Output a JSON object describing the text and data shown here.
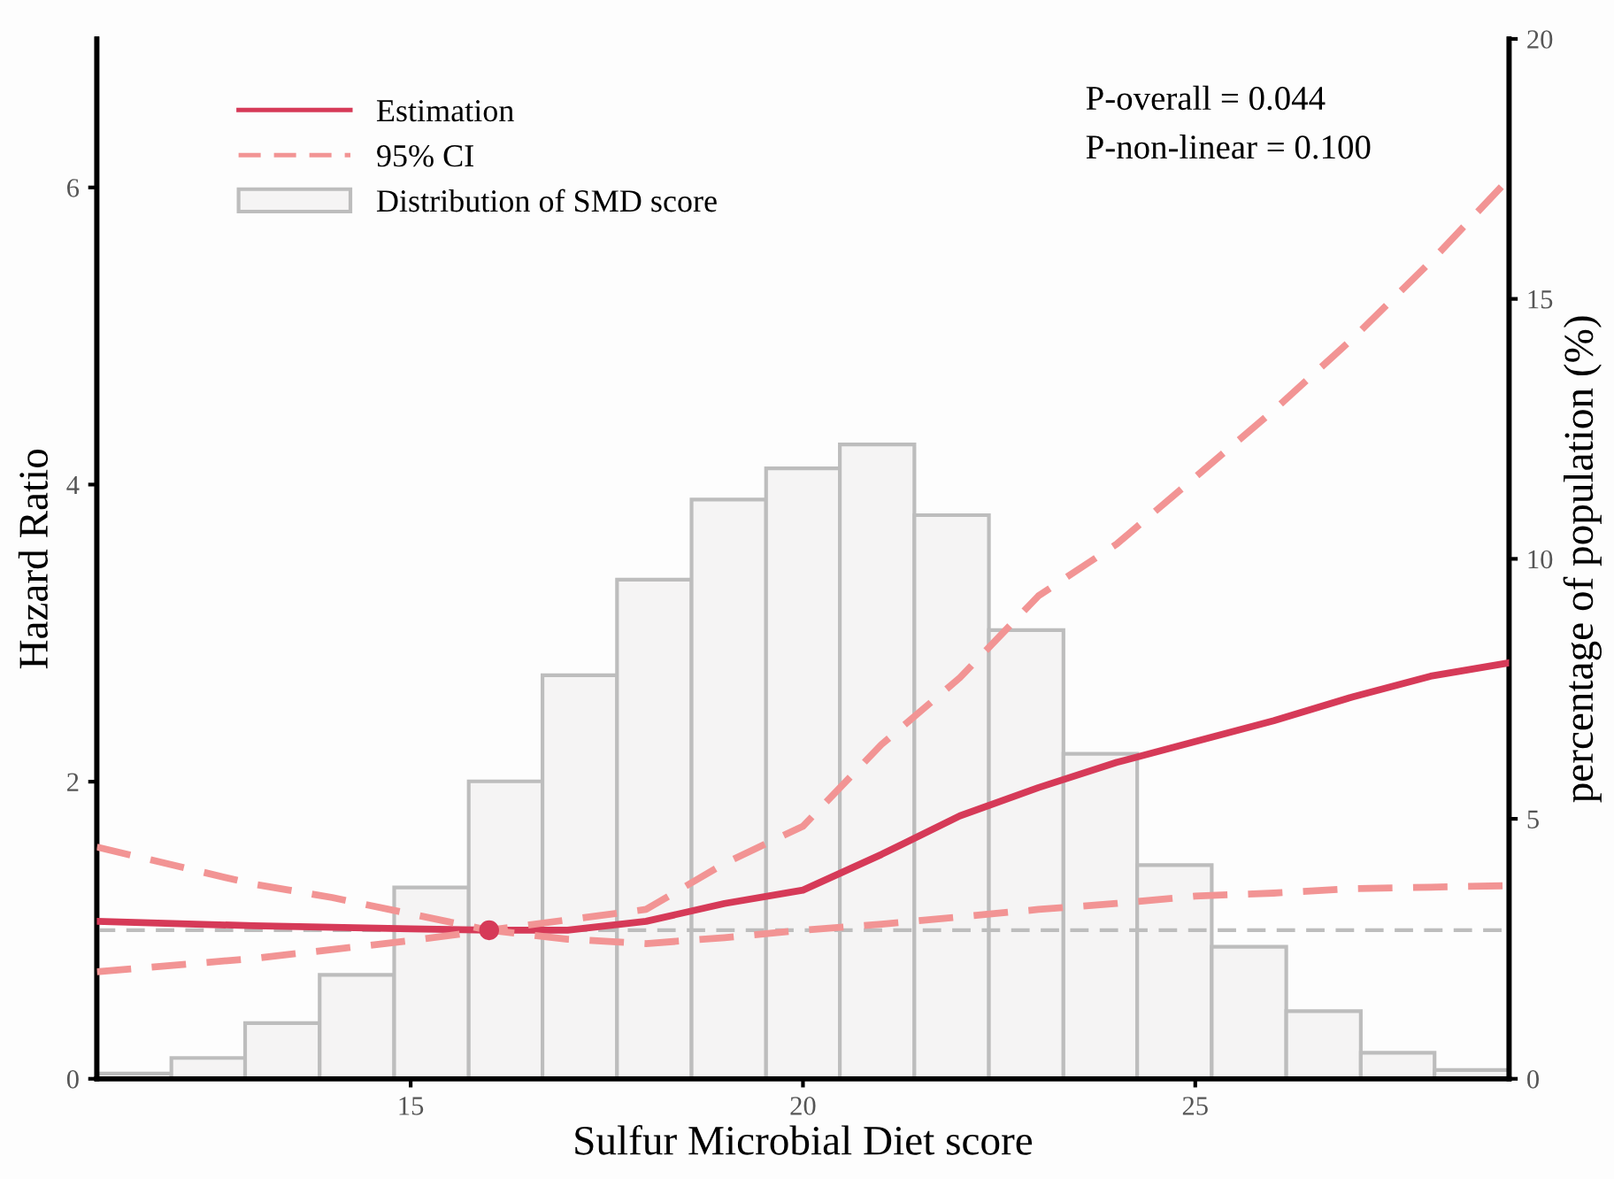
{
  "chart_data": {
    "type": "line",
    "xlabel": "Sulfur Microbial Diet score",
    "ylabel": "Hazard Ratio",
    "y2label": "percentage of population (%)",
    "xlim": [
      11,
      29
    ],
    "xticks": [
      15,
      20,
      25
    ],
    "ylim": [
      0,
      7
    ],
    "yticks": [
      0,
      2,
      4,
      6
    ],
    "y2lim": [
      0,
      20
    ],
    "y2ticks": [
      0,
      5,
      10,
      15,
      20
    ],
    "grid": false,
    "legend": "top left",
    "annotations": [
      "P-overall = 0.044",
      "P-non-linear = 0.100"
    ],
    "ref_lines": [
      {
        "axis": "y",
        "value": 1,
        "color": "#bdbdbd",
        "line_style": "dashed"
      }
    ],
    "series": [
      {
        "name": "Estimation",
        "color": "#d63a58",
        "line_style": "solid",
        "x": [
          11,
          13,
          15,
          16,
          17,
          18,
          19,
          20,
          21,
          22,
          23,
          24,
          25,
          26,
          27,
          28,
          29
        ],
        "values": [
          1.06,
          1.03,
          1.01,
          1.0,
          1.0,
          1.06,
          1.18,
          1.27,
          1.51,
          1.77,
          1.96,
          2.13,
          2.27,
          2.41,
          2.57,
          2.71,
          2.8
        ]
      },
      {
        "name": "95% CI",
        "color": "#f29494",
        "line_style": "dashed",
        "x": [
          11,
          13,
          14,
          15,
          16,
          17,
          18,
          19,
          20,
          21,
          22,
          23,
          24,
          25,
          26,
          27,
          28,
          29
        ],
        "values": [
          1.56,
          1.31,
          1.22,
          1.11,
          1.0,
          1.07,
          1.14,
          1.45,
          1.7,
          2.25,
          2.7,
          3.25,
          3.6,
          4.05,
          4.5,
          4.98,
          5.5,
          6.06
        ]
      },
      {
        "color": "#f29494",
        "line_style": "dashed",
        "x": [
          11,
          13,
          15,
          16,
          17,
          18,
          19,
          20,
          21,
          22,
          23,
          24,
          25,
          26,
          27,
          28,
          29
        ],
        "values": [
          0.72,
          0.81,
          0.93,
          1.0,
          0.94,
          0.91,
          0.95,
          1.0,
          1.04,
          1.09,
          1.14,
          1.18,
          1.23,
          1.25,
          1.28,
          1.29,
          1.3
        ]
      },
      {
        "type": "scatter",
        "color": "#d63a58",
        "marker": "circle",
        "x": [
          16
        ],
        "values": [
          1
        ]
      },
      {
        "type": "histogram",
        "name": "Distribution of SMD score",
        "color": "#f5f4f4",
        "axis": "y2",
        "bins": [
          11.0,
          11.95,
          12.89,
          13.84,
          14.79,
          15.74,
          16.68,
          17.63,
          18.58,
          19.53,
          20.47,
          21.42,
          22.37,
          23.32,
          24.26,
          25.21,
          26.16,
          27.11,
          28.05,
          29.0
        ],
        "values": [
          0.1,
          0.4,
          1.07,
          2.0,
          3.68,
          5.72,
          7.76,
          9.6,
          11.14,
          11.74,
          12.2,
          10.84,
          8.63,
          6.25,
          4.11,
          2.54,
          1.3,
          0.5,
          0.17
        ]
      }
    ]
  }
}
